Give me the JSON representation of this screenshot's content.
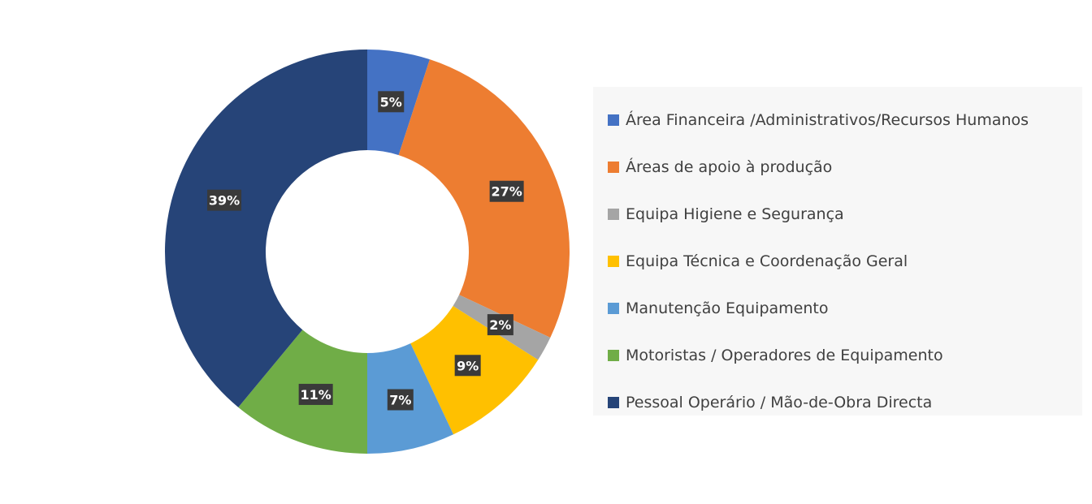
{
  "chart_data": {
    "type": "pie",
    "donut": true,
    "title": "",
    "legend_position": "right",
    "categories": [
      "Área Financeira /Administrativos/Recursos Humanos",
      "Áreas de apoio à produção",
      "Equipa Higiene e Segurança",
      "Equipa Técnica e Coordenação Geral",
      "Manutenção Equipamento",
      "Motoristas / Operadores de Equipamento",
      "Pessoal Operário / Mão-de-Obra Directa"
    ],
    "values": [
      5,
      27,
      2,
      9,
      7,
      11,
      39
    ],
    "labels": [
      "5%",
      "27%",
      "2%",
      "9%",
      "7%",
      "11%",
      "39%"
    ],
    "colors": [
      "#4472c4",
      "#ed7d31",
      "#a5a5a5",
      "#ffc000",
      "#5b9bd5",
      "#70ad47",
      "#264478"
    ]
  }
}
